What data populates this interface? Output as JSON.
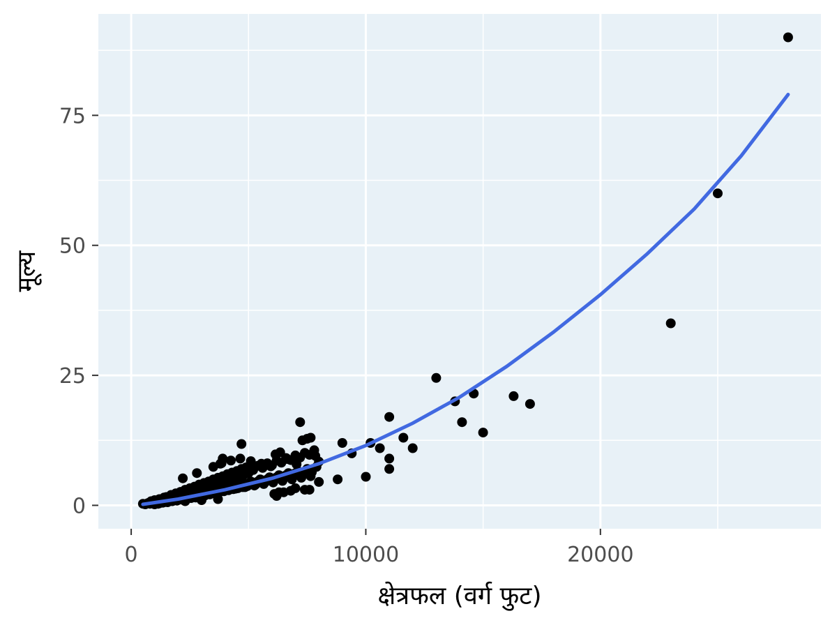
{
  "chart_data": {
    "type": "scatter",
    "title": "",
    "xlabel": "क्षेत्रफल (वर्ग फुट)",
    "ylabel": "मूल्य",
    "xlim": [
      -1400,
      29400
    ],
    "ylim": [
      -4.5,
      94.5
    ],
    "x_ticks": [
      0,
      10000,
      20000
    ],
    "y_ticks": [
      0,
      25,
      50,
      75
    ],
    "x_tick_labels": [
      "0",
      "10000",
      "20000"
    ],
    "y_tick_labels": [
      "0",
      "25",
      "50",
      "75"
    ],
    "x_minor_ticks": [
      5000,
      15000,
      25000
    ],
    "y_minor_ticks": [
      12.5,
      37.5,
      62.5,
      87.5
    ],
    "grid": true,
    "colors": {
      "panel_background": "#e8f1f7",
      "grid": "#ffffff",
      "points": "#000000",
      "trend_line": "#4169e1"
    },
    "series": [
      {
        "type": "scatter",
        "x": [
          500,
          600,
          700,
          750,
          800,
          850,
          900,
          950,
          1000,
          1050,
          1100,
          1150,
          1200,
          1250,
          1300,
          1350,
          1400,
          1450,
          1500,
          1550,
          1600,
          1650,
          1700,
          1750,
          1800,
          1850,
          1900,
          1950,
          2000,
          2050,
          2100,
          2150,
          2200,
          2250,
          2300,
          2350,
          2400,
          2450,
          2500,
          2550,
          2600,
          2650,
          2700,
          2750,
          2800,
          2850,
          2900,
          2950,
          3000,
          3050,
          3100,
          3150,
          3200,
          3250,
          3300,
          3350,
          3400,
          3450,
          3500,
          3550,
          3600,
          3650,
          3700,
          3750,
          3800,
          3850,
          3900,
          3950,
          4000,
          4050,
          4100,
          4150,
          4200,
          4250,
          4300,
          4350,
          4400,
          4450,
          4500,
          4550,
          4600,
          4650,
          4700,
          4750,
          4800,
          4850,
          4900,
          4950,
          5000,
          5100,
          5200,
          5300,
          5400,
          5500,
          5600,
          5700,
          5800,
          5900,
          6000,
          6100,
          6200,
          6300,
          6400,
          6500,
          6600,
          6700,
          6800,
          6900,
          7000,
          7100,
          7200,
          7300,
          7400,
          7500,
          7600,
          7700,
          7800,
          7900,
          8000,
          1000,
          1200,
          1400,
          1600,
          1800,
          2000,
          2200,
          2400,
          2600,
          2800,
          3000,
          3200,
          3400,
          3600,
          3800,
          4000,
          4200,
          4400,
          4600,
          4800,
          5000,
          5200,
          5400,
          5600,
          5800,
          6000,
          6200,
          6400,
          6600,
          6800,
          7000,
          1500,
          1700,
          1900,
          2100,
          2300,
          2500,
          2700,
          2900,
          3100,
          3300,
          3500,
          3700,
          3900,
          4100,
          4300,
          4500,
          4700,
          1300,
          1650,
          2050,
          2450,
          2850,
          3250,
          3650,
          4050,
          4450,
          4850,
          5250,
          5650,
          6050,
          6450,
          6850,
          7250,
          7650,
          2200,
          2800,
          3500,
          3850,
          4250,
          4650,
          5100,
          5550,
          5950,
          6150,
          6350,
          6650,
          7050,
          7300,
          7650,
          7850,
          2300,
          3000,
          3700,
          4700,
          6300,
          7200,
          7600,
          3800,
          3900,
          5300,
          6100,
          6200,
          6500,
          6800,
          7000,
          7400,
          7500,
          8000,
          8800,
          9000,
          9400,
          10000,
          10200,
          10600,
          11000,
          11000,
          11000,
          11600,
          12000,
          13000,
          13800,
          14100,
          14600,
          15000,
          16300,
          17000,
          23000,
          25000,
          28000
        ],
        "y": [
          0.3,
          0.2,
          0.4,
          0.5,
          0.3,
          0.8,
          0.6,
          0.4,
          1.0,
          0.5,
          0.9,
          0.3,
          1.2,
          0.7,
          1.0,
          0.5,
          1.5,
          0.9,
          1.2,
          0.6,
          1.4,
          1.0,
          2.0,
          0.8,
          1.6,
          1.2,
          2.3,
          0.9,
          1.8,
          1.4,
          2.6,
          1.1,
          2.0,
          1.6,
          3.0,
          1.2,
          2.3,
          1.8,
          3.3,
          1.4,
          2.6,
          2.0,
          3.6,
          1.5,
          2.9,
          2.2,
          4.0,
          1.7,
          3.2,
          2.4,
          4.3,
          1.9,
          3.5,
          2.6,
          4.6,
          2.1,
          3.8,
          2.8,
          5.0,
          2.3,
          4.1,
          3.0,
          5.3,
          2.5,
          4.4,
          3.2,
          5.6,
          2.7,
          4.7,
          3.4,
          6.0,
          2.9,
          5.0,
          3.6,
          6.3,
          3.1,
          5.3,
          3.8,
          6.6,
          3.3,
          5.6,
          4.0,
          7.0,
          3.5,
          5.9,
          4.2,
          7.3,
          3.7,
          6.2,
          4.6,
          6.8,
          4.0,
          7.6,
          5.0,
          7.2,
          4.4,
          8.1,
          5.4,
          7.7,
          4.8,
          8.6,
          5.8,
          8.2,
          5.2,
          9.1,
          6.2,
          8.7,
          5.6,
          9.6,
          6.6,
          9.2,
          6.0,
          10.1,
          7.0,
          9.7,
          6.4,
          10.6,
          7.4,
          8.4,
          0.2,
          0.4,
          0.6,
          0.8,
          1.0,
          1.2,
          1.4,
          1.6,
          1.8,
          2.0,
          2.2,
          2.4,
          2.6,
          2.8,
          3.0,
          3.2,
          3.4,
          3.6,
          3.8,
          4.0,
          4.2,
          4.4,
          4.6,
          4.8,
          5.0,
          5.2,
          5.4,
          5.6,
          5.8,
          6.0,
          6.2,
          1.6,
          1.9,
          2.2,
          2.5,
          2.8,
          3.1,
          3.4,
          3.7,
          4.0,
          4.3,
          4.6,
          4.9,
          5.2,
          5.5,
          5.8,
          6.1,
          6.4,
          0.9,
          1.1,
          1.4,
          1.7,
          2.0,
          2.3,
          2.6,
          2.9,
          3.2,
          3.5,
          3.8,
          4.1,
          4.4,
          4.7,
          5.0,
          5.3,
          5.6,
          5.2,
          6.2,
          7.4,
          8.1,
          8.6,
          9.0,
          8.5,
          8.0,
          7.5,
          9.8,
          10.2,
          8.9,
          7.9,
          12.5,
          13.0,
          9.5,
          0.8,
          1.0,
          1.2,
          11.8,
          2.5,
          16.0,
          3.0,
          8.0,
          9.0,
          4.0,
          2.2,
          1.8,
          2.5,
          2.8,
          3.3,
          3.0,
          12.8,
          4.5,
          5.0,
          12.0,
          10.0,
          5.5,
          12.0,
          11.0,
          17.0,
          9.0,
          7.0,
          13.0,
          11.0,
          24.5,
          20.0,
          16.0,
          21.5,
          14.0,
          21.0,
          19.5,
          35.0,
          60.0,
          90.0
        ]
      },
      {
        "type": "line",
        "x": [
          500,
          2000,
          4000,
          6000,
          8000,
          10000,
          12000,
          14000,
          16000,
          18000,
          20000,
          22000,
          24000,
          26000,
          28000
        ],
        "y": [
          0.2,
          1.2,
          3.0,
          5.2,
          8.0,
          11.5,
          15.8,
          20.8,
          26.7,
          33.3,
          40.5,
          48.4,
          57.0,
          67.2,
          79.0
        ]
      }
    ]
  }
}
